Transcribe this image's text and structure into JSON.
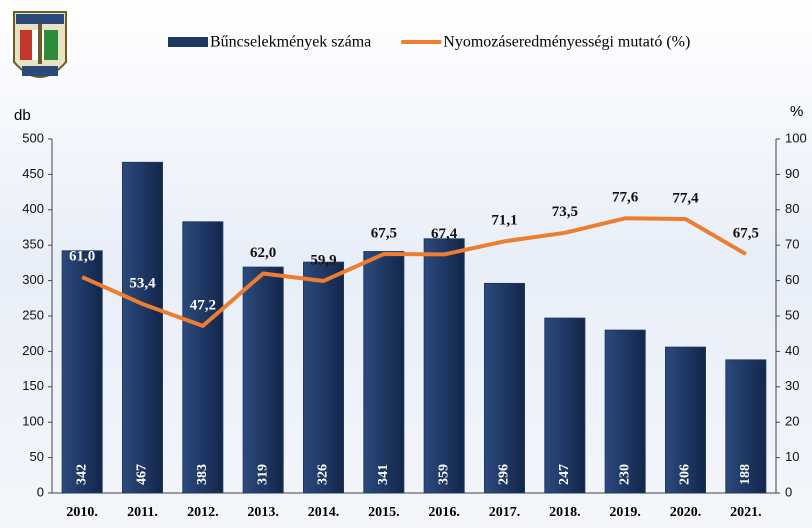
{
  "chart_data": {
    "type": "bar_line",
    "categories": [
      "2010.",
      "2011.",
      "2012.",
      "2013.",
      "2014.",
      "2015.",
      "2016.",
      "2017.",
      "2018.",
      "2019.",
      "2020.",
      "2021."
    ],
    "series": [
      {
        "name": "Bűncselekmények száma",
        "type": "bar",
        "color": "#1f3864",
        "values": [
          342,
          467,
          383,
          319,
          326,
          341,
          359,
          296,
          247,
          230,
          206,
          188
        ]
      },
      {
        "name": "Nyomozáseredményességi mutató (%)",
        "type": "line",
        "axis": "y2",
        "color": "#ed7d31",
        "values": [
          61.0,
          53.4,
          47.2,
          62.0,
          59.9,
          67.5,
          67.4,
          71.1,
          73.5,
          77.6,
          77.4,
          67.5
        ],
        "value_labels": [
          "61,0",
          "53,4",
          "47,2",
          "62,0",
          "59,9",
          "67,5",
          "67,4",
          "71,1",
          "73,5",
          "77,6",
          "77,4",
          "67,5"
        ]
      }
    ],
    "y_label": "db",
    "y2_label": "%",
    "ylim": [
      0,
      500
    ],
    "yticks": [
      0,
      50,
      100,
      150,
      200,
      250,
      300,
      350,
      400,
      450,
      500
    ],
    "y2lim": [
      0,
      100
    ],
    "y2ticks": [
      0,
      10,
      20,
      30,
      40,
      50,
      60,
      70,
      80,
      90,
      100
    ]
  }
}
